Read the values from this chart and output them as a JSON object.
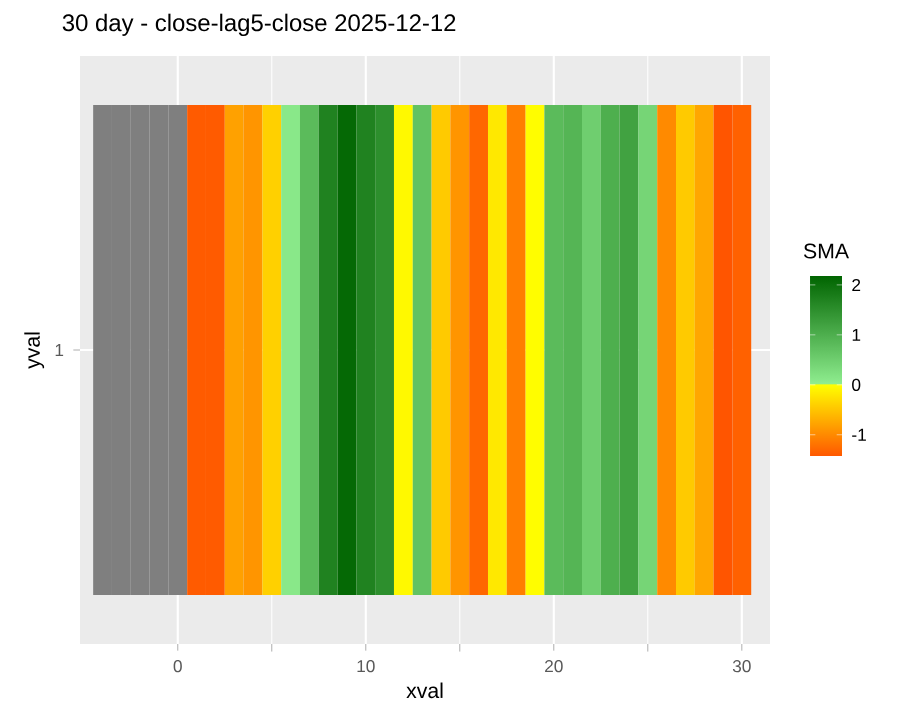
{
  "chart_data": {
    "type": "heatmap",
    "title": "30 day - close-lag5-close  2025-12-12",
    "xlabel": "xval",
    "ylabel": "yval",
    "clabel": "SMA",
    "x": [
      -4,
      -3,
      -2,
      -1,
      0,
      1,
      2,
      3,
      4,
      5,
      6,
      7,
      8,
      9,
      10,
      11,
      12,
      13,
      14,
      15,
      16,
      17,
      18,
      19,
      20,
      21,
      22,
      23,
      24,
      25,
      26,
      27,
      28,
      29,
      30
    ],
    "y_categories": [
      "1"
    ],
    "cells": [
      [
        null,
        null,
        null,
        null,
        null,
        -1.4,
        -1.4,
        -0.8,
        -0.9,
        -0.4,
        0.1,
        0.8,
        1.7,
        2.1,
        1.7,
        1.5,
        -0.05,
        0.7,
        -0.45,
        -0.9,
        -1.3,
        -0.2,
        -1.1,
        -0.02,
        0.8,
        0.9,
        0.5,
        1.0,
        1.2,
        0.4,
        -1.0,
        -0.45,
        -0.75,
        -1.45,
        -1.35
      ]
    ],
    "xlim": [
      -5.2,
      31.5
    ],
    "xticks": [
      0,
      10,
      20,
      30
    ],
    "clim": [
      -1.45,
      2.18
    ],
    "cticks": [
      -1,
      0,
      1,
      2
    ],
    "grid": true
  }
}
